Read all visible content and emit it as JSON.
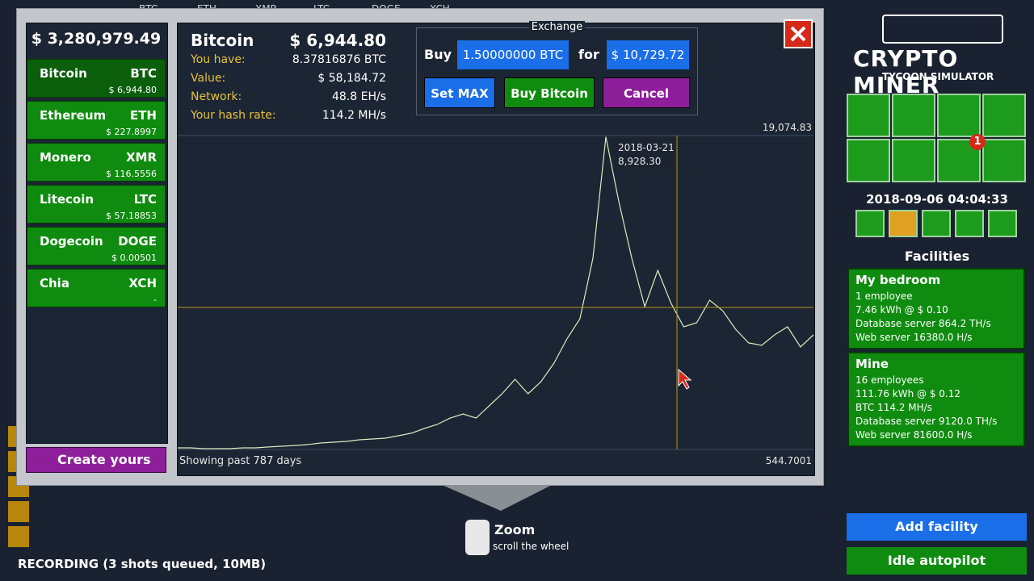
{
  "background": {
    "ticker": [
      "BTC",
      "ETH",
      "XMR",
      "LTC",
      "DOGE",
      "XCH"
    ],
    "recording": "RECORDING (3 shots queued, 10MB)",
    "hint_title": "Zoom",
    "hint_text": "scroll the wheel"
  },
  "wallet": {
    "balance": "$ 3,280,979.49",
    "create_button": "Create yours"
  },
  "coins": [
    {
      "name": "Bitcoin",
      "symbol": "BTC",
      "price": "$ 6,944.80"
    },
    {
      "name": "Ethereum",
      "symbol": "ETH",
      "price": "$ 227.8997"
    },
    {
      "name": "Monero",
      "symbol": "XMR",
      "price": "$ 116.5556"
    },
    {
      "name": "Litecoin",
      "symbol": "LTC",
      "price": "$ 57.18853"
    },
    {
      "name": "Dogecoin",
      "symbol": "DOGE",
      "price": "$ 0.00501"
    },
    {
      "name": "Chia",
      "symbol": "XCH",
      "price": "-"
    }
  ],
  "detail": {
    "name": "Bitcoin",
    "price": "$ 6,944.80",
    "rows": [
      {
        "label": "You have:",
        "value": "8.37816876 BTC"
      },
      {
        "label": "Value:",
        "value": "$ 58,184.72"
      },
      {
        "label": "Network:",
        "value": "48.8 EH/s"
      },
      {
        "label": "Your hash rate:",
        "value": "114.2 MH/s"
      }
    ]
  },
  "exchange": {
    "title": "Exchange",
    "buy_label": "Buy",
    "amount": "1.50000000 BTC",
    "for_label": "for",
    "cost": "$ 10,729.72",
    "buttons": [
      "Set MAX",
      "Buy Bitcoin",
      "Cancel"
    ]
  },
  "price_chart": {
    "type": "line",
    "ylim": [
      544.7001,
      19074.83
    ],
    "yticks": [
      {
        "value": 544.7001,
        "label": "544.7001"
      },
      {
        "value": 19074.83,
        "label": "19,074.83"
      }
    ],
    "color": "#d8ecc0",
    "values": [
      640,
      640,
      590,
      590,
      590,
      640,
      640,
      690,
      735,
      780,
      830,
      925,
      975,
      1020,
      1115,
      1165,
      1210,
      1355,
      1500,
      1785,
      2020,
      2400,
      2640,
      2400,
      3115,
      3830,
      4690,
      3830,
      4545,
      5640,
      7070,
      8260,
      11835,
      19000,
      15170,
      11835,
      8975,
      11120,
      9215,
      7785,
      8025,
      9355,
      8740,
      7640,
      6835,
      6690,
      7310,
      7785,
      6595,
      7310
    ],
    "tooltip": {
      "date": "2018-03-21",
      "value": {
        "value": 8928.3,
        "label": "8,928.30"
      }
    },
    "footer": "Showing past 787 days"
  },
  "sidebar": {
    "logo": "CRYPTO MINER",
    "logo_sub": "TYCOON SIMULATOR",
    "badge": "1",
    "datetime": "2018-09-06 04:04:33",
    "facilities_title": "Facilities",
    "facilities": [
      {
        "name": "My bedroom",
        "lines": [
          "1 employee",
          "7.46 kWh @ $ 0.10",
          "Database server 864.2 TH/s",
          "Web server 16380.0 H/s"
        ]
      },
      {
        "name": "Mine",
        "lines": [
          "16 employees",
          "111.76 kWh @ $ 0.12",
          "BTC 114.2 MH/s",
          "Database server 9120.0 TH/s",
          "Web server 81600.0 H/s"
        ]
      }
    ],
    "add_facility": "Add facility",
    "idle_autopilot": "Idle autopilot"
  }
}
